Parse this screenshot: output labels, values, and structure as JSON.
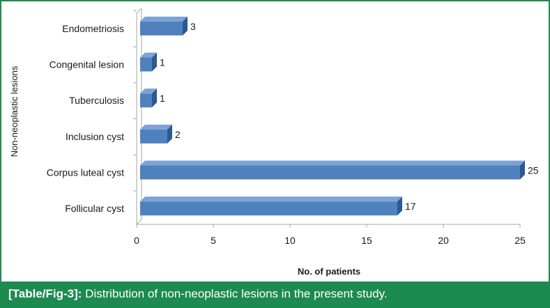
{
  "chart_data": {
    "type": "bar",
    "orientation": "horizontal",
    "categories": [
      "Endometriosis",
      "Congenital lesion",
      "Tuberculosis",
      "Inclusion cyst",
      "Corpus luteal cyst",
      "Follicular cyst"
    ],
    "values": [
      3,
      1,
      1,
      2,
      25,
      17
    ],
    "xlabel": "No. of patients",
    "ylabel": "Non-neoplastic lesions",
    "xlim": [
      0,
      25
    ],
    "xticks": [
      "0",
      "5",
      "10",
      "15",
      "20",
      "25"
    ],
    "grid": false,
    "legend": "none",
    "bar_color": "#4f81bd",
    "bar_top_color": "#7da3d6",
    "bar_side_color": "#2c5a8f",
    "style": "3d"
  },
  "caption": {
    "tag": "[Table/Fig-3]:",
    "text": " Distribution of non-neoplastic lesions in the present study.",
    "color": "#1d8a4f"
  }
}
